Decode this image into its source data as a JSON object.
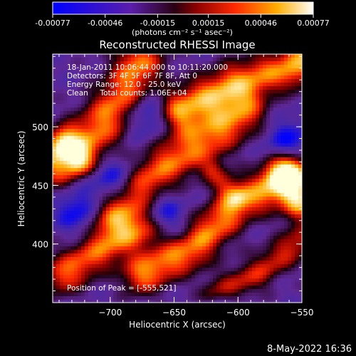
{
  "colorbar": {
    "ticks": [
      "-0.00077",
      "-0.00046",
      "-0.00015",
      "0.00015",
      "0.00046",
      "0.00077"
    ],
    "tick_values": [
      -0.00077,
      -0.00046,
      -0.00015,
      0.00015,
      0.00046,
      0.00077
    ],
    "unit_label": "(photons cm⁻² s⁻¹ asec⁻²)",
    "colors": [
      "#0000ff",
      "#5a1eaa",
      "#2a0010",
      "#8a0000",
      "#ff2a00",
      "#ffae00",
      "#ffffff"
    ]
  },
  "chart_data": {
    "type": "heatmap",
    "title": "Reconstructed RHESSI Image",
    "xlabel": "Heliocentric X (arcsec)",
    "ylabel": "Heliocentric Y (arcsec)",
    "xlim": [
      -745,
      -550
    ],
    "ylim": [
      350,
      562
    ],
    "xticks": [
      -700,
      -650,
      -600,
      -550
    ],
    "xtick_labels": [
      "−700",
      "−650",
      "−600",
      "−550"
    ],
    "yticks": [
      400,
      450,
      500
    ],
    "ytick_labels": [
      "400",
      "450",
      "500"
    ],
    "annotations": [
      "18-Jan-2011 10:06:44.000 to 10:11:20.000",
      "Detectors: 3F 4F 5F 6F 7F 8F, Att 0",
      "Energy Range: 12.0 - 25.0 keV",
      "Clean     Total counts: 1.06E+04"
    ],
    "peak_label": "Position of Peak = [-555,521]",
    "peak": [
      -555,
      521
    ],
    "value_range": [
      -0.00077,
      0.00077
    ]
  },
  "footer": {
    "date": "8-May-2022 16:36"
  }
}
